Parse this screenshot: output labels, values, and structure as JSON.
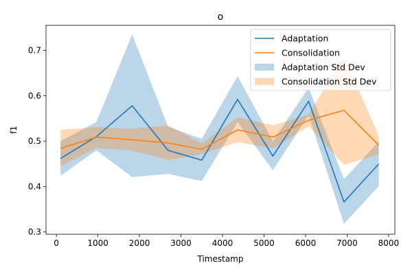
{
  "chart_data": {
    "type": "line",
    "title": "o",
    "xlabel": "Timestamp",
    "ylabel": "f1",
    "xlim": [
      -250,
      8150
    ],
    "ylim": [
      0.295,
      0.755
    ],
    "xticks": [
      0,
      1000,
      2000,
      3000,
      4000,
      5000,
      6000,
      7000,
      8000
    ],
    "yticks": [
      0.3,
      0.4,
      0.5,
      0.6,
      0.7
    ],
    "xtick_labels": [
      "0",
      "1000",
      "2000",
      "3000",
      "4000",
      "5000",
      "6000",
      "7000",
      "8000"
    ],
    "ytick_labels": [
      "0.3",
      "0.4",
      "0.5",
      "0.6",
      "0.7"
    ],
    "grid": false,
    "legend_position": "top-right",
    "x": [
      100,
      963,
      1825,
      2688,
      3500,
      4363,
      5213,
      6075,
      6925,
      7763
    ],
    "series": [
      {
        "name": "Adaptation",
        "color": "#1f77b4",
        "values": [
          0.462,
          0.51,
          0.578,
          0.48,
          0.458,
          0.592,
          0.467,
          0.588,
          0.366,
          0.45
        ],
        "std_name": "Adaptation Std Dev",
        "std_color": "#1f77b4",
        "std_opacity": 0.3,
        "upper": [
          0.5,
          0.542,
          0.735,
          0.532,
          0.505,
          0.643,
          0.5,
          0.618,
          0.416,
          0.499
        ],
        "lower": [
          0.424,
          0.48,
          0.421,
          0.428,
          0.412,
          0.542,
          0.436,
          0.557,
          0.318,
          0.401
        ]
      },
      {
        "name": "Consolidation",
        "color": "#ff7f0e",
        "values": [
          0.484,
          0.509,
          0.503,
          0.496,
          0.482,
          0.525,
          0.509,
          0.546,
          0.568,
          0.491
        ],
        "std_name": "Consolidation Std Dev",
        "std_color": "#ff7f0e",
        "std_opacity": 0.3,
        "upper": [
          0.525,
          0.531,
          0.527,
          0.535,
          0.495,
          0.552,
          0.535,
          0.559,
          0.688,
          0.511
        ],
        "lower": [
          0.445,
          0.485,
          0.479,
          0.459,
          0.471,
          0.498,
          0.484,
          0.533,
          0.448,
          0.471
        ]
      }
    ]
  }
}
